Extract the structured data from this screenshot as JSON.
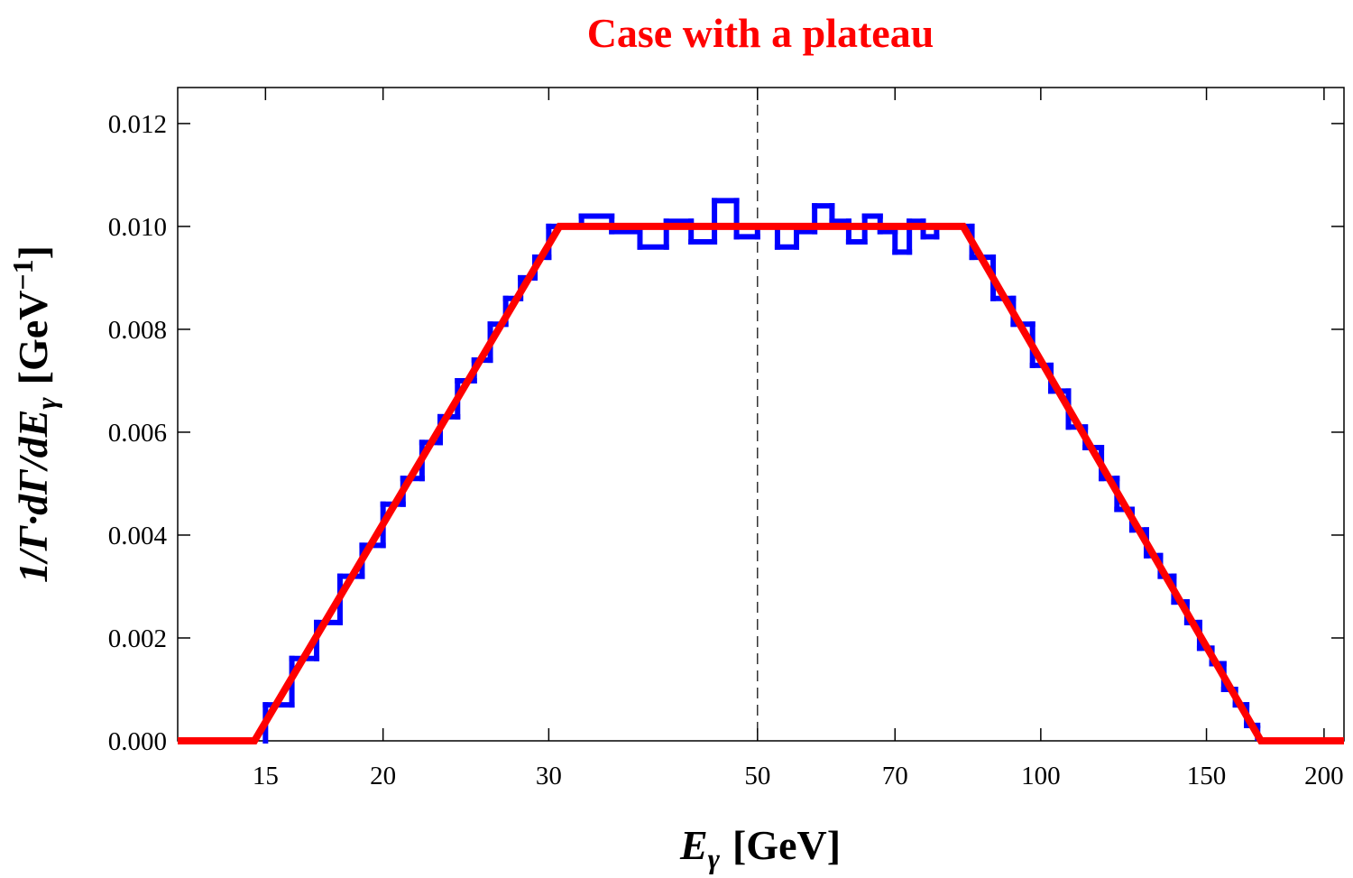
{
  "chart_data": {
    "type": "histogram",
    "title": "Case with a plateau",
    "xlabel": {
      "main": "E",
      "sub": "γ",
      "unit": "[GeV]"
    },
    "ylabel": {
      "main": "1/Γ·dΓ/dE",
      "sub": "γ",
      "unit": "[GeV",
      "sup": "−1",
      "close": "]"
    },
    "xscale": "log",
    "xlim": [
      12.1,
      210
    ],
    "ylim": [
      0,
      0.0127
    ],
    "xticks": [
      15,
      20,
      30,
      50,
      70,
      100,
      150,
      200
    ],
    "yticks": [
      {
        "value": 0,
        "label": "0.000"
      },
      {
        "value": 0.002,
        "label": "0.002"
      },
      {
        "value": 0.004,
        "label": "0.004"
      },
      {
        "value": 0.006,
        "label": "0.006"
      },
      {
        "value": 0.008,
        "label": "0.008"
      },
      {
        "value": 0.01,
        "label": "0.010"
      },
      {
        "value": 0.012,
        "label": "0.012"
      }
    ],
    "vline": 50,
    "color": "#0000ff",
    "bins": [
      15,
      16,
      17,
      18,
      19,
      20,
      21,
      22,
      23,
      24,
      25,
      26,
      27,
      28,
      29,
      30,
      32.5,
      35,
      37.5,
      40,
      42.5,
      45,
      47.5,
      50,
      52.5,
      55,
      57.5,
      60,
      62.5,
      65,
      67.5,
      70,
      72.5,
      75,
      77.5,
      80,
      84.5,
      89,
      93.5,
      98,
      102.5,
      107,
      111.5,
      116,
      120.5,
      125,
      129.5,
      134,
      138.5,
      143,
      147.5,
      152,
      156.5,
      161,
      165.5,
      170
    ],
    "counts": [
      0.0007,
      0.0016,
      0.0023,
      0.0032,
      0.0038,
      0.0046,
      0.0051,
      0.0058,
      0.0063,
      0.007,
      0.0074,
      0.0081,
      0.0086,
      0.009,
      0.0094,
      0.01,
      0.0102,
      0.0099,
      0.0096,
      0.0101,
      0.0097,
      0.0105,
      0.0098,
      0.01,
      0.0096,
      0.0099,
      0.0104,
      0.0101,
      0.0097,
      0.0102,
      0.0099,
      0.0095,
      0.0101,
      0.0098,
      0.01,
      0.01,
      0.0094,
      0.0086,
      0.0081,
      0.0073,
      0.0068,
      0.0061,
      0.0057,
      0.0051,
      0.0045,
      0.0041,
      0.0036,
      0.0032,
      0.0027,
      0.0023,
      0.0018,
      0.0015,
      0.001,
      0.0007,
      0.0003
    ],
    "line": {
      "color": "#ff0000",
      "x": [
        12.1,
        14.6,
        30.8,
        82.7,
        171.4,
        210
      ],
      "values": [
        0,
        0,
        0.01,
        0.01,
        0,
        0
      ]
    }
  }
}
